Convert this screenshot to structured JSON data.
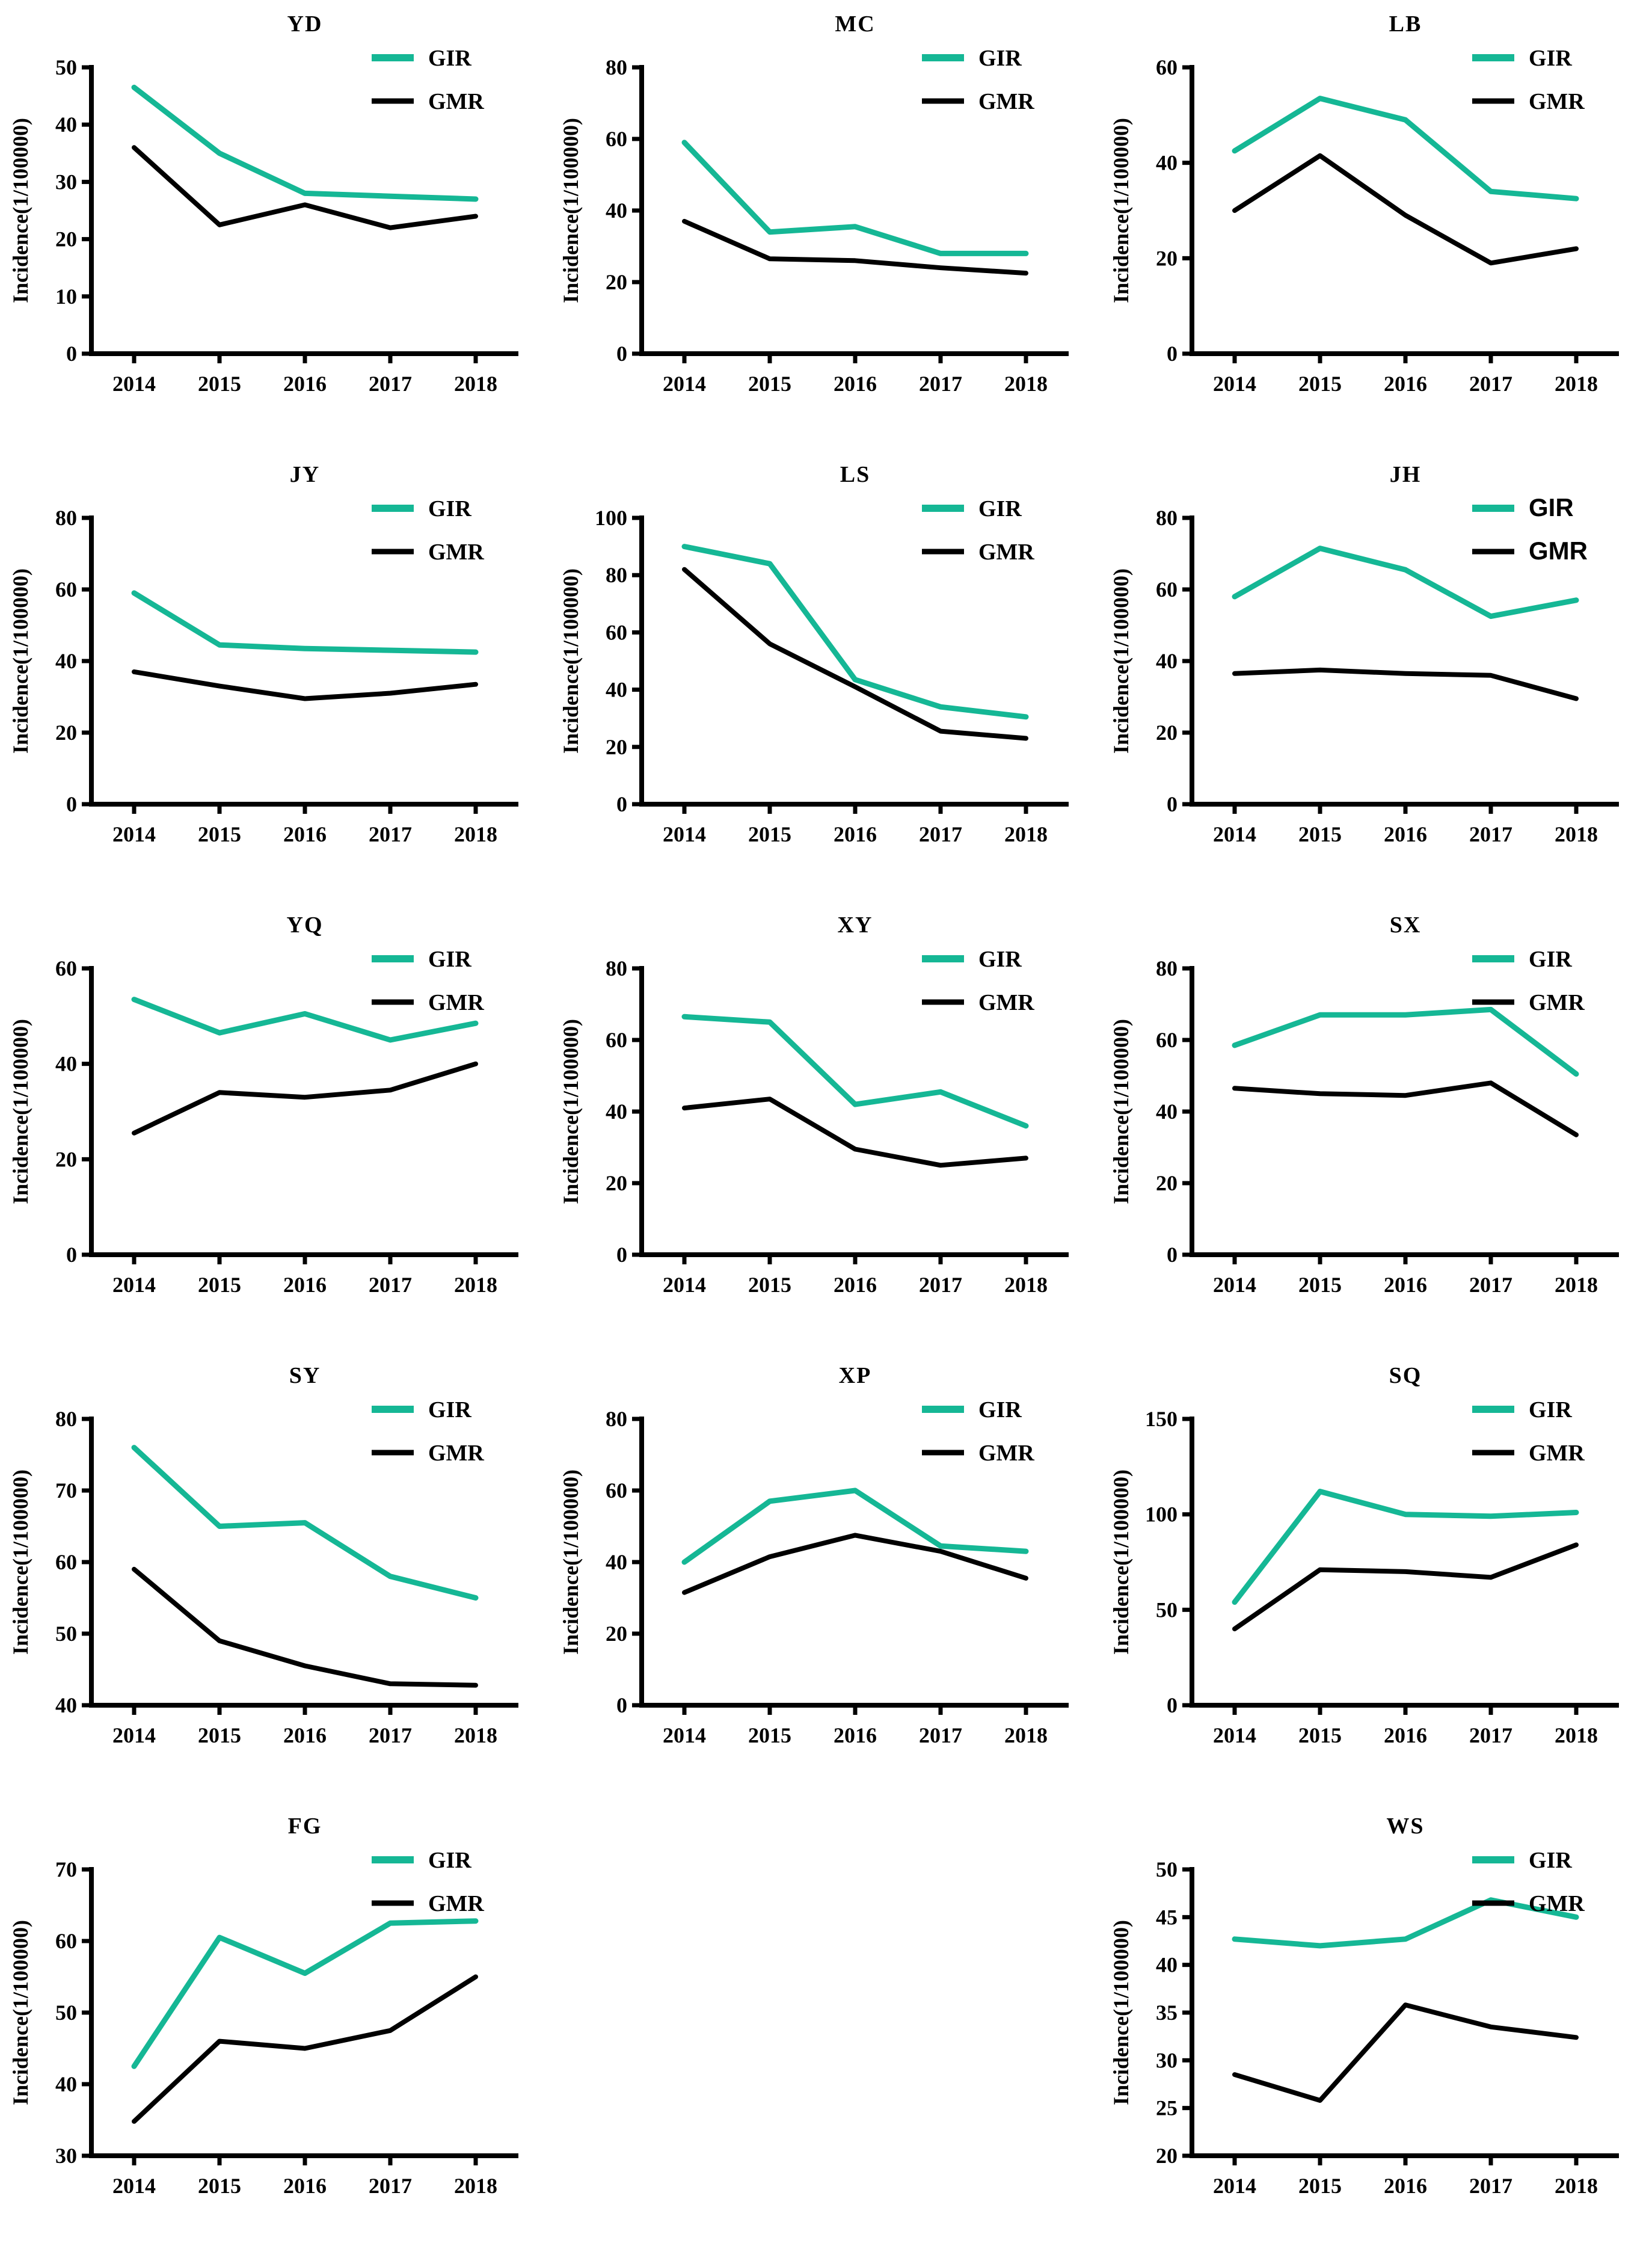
{
  "figure": {
    "ylabel": "Incidence(1/100000)",
    "years": [
      "2014",
      "2015",
      "2016",
      "2017",
      "2018"
    ],
    "legend": [
      {
        "name": "GIR",
        "color": "#15B795"
      },
      {
        "name": "GMR",
        "color": "#000000"
      }
    ],
    "grid_slots": [
      "YD",
      "MC",
      "LB",
      "JY",
      "LS",
      "JH",
      "YQ",
      "XY",
      "SX",
      "SY",
      "XP",
      "SQ",
      "FG",
      "",
      "WS"
    ]
  },
  "chart_data": [
    {
      "type": "line",
      "title": "YD",
      "xlabel": "",
      "ylabel": "Incidence(1/100000)",
      "x": [
        "2014",
        "2015",
        "2016",
        "2017",
        "2018"
      ],
      "ylim": [
        0,
        50
      ],
      "yticks": [
        0,
        10,
        20,
        30,
        40,
        50
      ],
      "legend_font": "serif",
      "series": [
        {
          "name": "GIR",
          "values": [
            46.5,
            35,
            28,
            27.5,
            27
          ]
        },
        {
          "name": "GMR",
          "values": [
            36,
            22.5,
            26,
            22,
            24
          ]
        }
      ]
    },
    {
      "type": "line",
      "title": "MC",
      "xlabel": "",
      "ylabel": "Incidence(1/100000)",
      "x": [
        "2014",
        "2015",
        "2016",
        "2017",
        "2018"
      ],
      "ylim": [
        0,
        80
      ],
      "yticks": [
        0,
        20,
        40,
        60,
        80
      ],
      "legend_font": "serif",
      "series": [
        {
          "name": "GIR",
          "values": [
            59,
            34,
            35.5,
            28,
            28
          ]
        },
        {
          "name": "GMR",
          "values": [
            37,
            26.5,
            26,
            24,
            22.5
          ]
        }
      ]
    },
    {
      "type": "line",
      "title": "LB",
      "xlabel": "",
      "ylabel": "Incidence(1/100000)",
      "x": [
        "2014",
        "2015",
        "2016",
        "2017",
        "2018"
      ],
      "ylim": [
        0,
        60
      ],
      "yticks": [
        0,
        20,
        40,
        60
      ],
      "legend_font": "serif",
      "series": [
        {
          "name": "GIR",
          "values": [
            42.5,
            53.5,
            49,
            34,
            32.5
          ]
        },
        {
          "name": "GMR",
          "values": [
            30,
            41.5,
            29,
            19,
            22
          ]
        }
      ]
    },
    {
      "type": "line",
      "title": "JY",
      "xlabel": "",
      "ylabel": "Incidence(1/100000)",
      "x": [
        "2014",
        "2015",
        "2016",
        "2017",
        "2018"
      ],
      "ylim": [
        0,
        80
      ],
      "yticks": [
        0,
        20,
        40,
        60,
        80
      ],
      "legend_font": "serif",
      "series": [
        {
          "name": "GIR",
          "values": [
            59,
            44.5,
            43.5,
            43,
            42.5
          ]
        },
        {
          "name": "GMR",
          "values": [
            37,
            33,
            29.5,
            31,
            33.5
          ]
        }
      ]
    },
    {
      "type": "line",
      "title": "LS",
      "xlabel": "",
      "ylabel": "Incidence(1/100000)",
      "x": [
        "2014",
        "2015",
        "2016",
        "2017",
        "2018"
      ],
      "ylim": [
        0,
        100
      ],
      "yticks": [
        0,
        20,
        40,
        60,
        80,
        100
      ],
      "legend_font": "serif",
      "series": [
        {
          "name": "GIR",
          "values": [
            90,
            84,
            43.5,
            34,
            30.5
          ]
        },
        {
          "name": "GMR",
          "values": [
            82,
            56,
            41,
            25.5,
            23
          ]
        }
      ]
    },
    {
      "type": "line",
      "title": "JH",
      "xlabel": "",
      "ylabel": "Incidence(1/100000)",
      "x": [
        "2014",
        "2015",
        "2016",
        "2017",
        "2018"
      ],
      "ylim": [
        0,
        80
      ],
      "yticks": [
        0,
        20,
        40,
        60,
        80
      ],
      "legend_font": "sans",
      "series": [
        {
          "name": "GIR",
          "values": [
            58,
            71.5,
            65.5,
            52.5,
            57
          ]
        },
        {
          "name": "GMR",
          "values": [
            36.5,
            37.5,
            36.5,
            36,
            29.5
          ]
        }
      ]
    },
    {
      "type": "line",
      "title": "YQ",
      "xlabel": "",
      "ylabel": "Incidence(1/100000)",
      "x": [
        "2014",
        "2015",
        "2016",
        "2017",
        "2018"
      ],
      "ylim": [
        0,
        60
      ],
      "yticks": [
        0,
        20,
        40,
        60
      ],
      "legend_font": "serif",
      "series": [
        {
          "name": "GIR",
          "values": [
            53.5,
            46.5,
            50.5,
            45,
            48.5
          ]
        },
        {
          "name": "GMR",
          "values": [
            25.5,
            34,
            33,
            34.5,
            40
          ]
        }
      ]
    },
    {
      "type": "line",
      "title": "XY",
      "xlabel": "",
      "ylabel": "Incidence(1/100000)",
      "x": [
        "2014",
        "2015",
        "2016",
        "2017",
        "2018"
      ],
      "ylim": [
        0,
        80
      ],
      "yticks": [
        0,
        20,
        40,
        60,
        80
      ],
      "legend_font": "serif",
      "series": [
        {
          "name": "GIR",
          "values": [
            66.5,
            65,
            42,
            45.5,
            36
          ]
        },
        {
          "name": "GMR",
          "values": [
            41,
            43.5,
            29.5,
            25,
            27
          ]
        }
      ]
    },
    {
      "type": "line",
      "title": "SX",
      "xlabel": "",
      "ylabel": "Incidence(1/100000)",
      "x": [
        "2014",
        "2015",
        "2016",
        "2017",
        "2018"
      ],
      "ylim": [
        0,
        80
      ],
      "yticks": [
        0,
        20,
        40,
        60,
        80
      ],
      "legend_font": "serif",
      "series": [
        {
          "name": "GIR",
          "values": [
            58.5,
            67,
            67,
            68.5,
            50.5
          ]
        },
        {
          "name": "GMR",
          "values": [
            46.5,
            45,
            44.5,
            48,
            33.5
          ]
        }
      ]
    },
    {
      "type": "line",
      "title": "SY",
      "xlabel": "",
      "ylabel": "Incidence(1/100000)",
      "x": [
        "2014",
        "2015",
        "2016",
        "2017",
        "2018"
      ],
      "ylim": [
        40,
        80
      ],
      "yticks": [
        40,
        50,
        60,
        70,
        80
      ],
      "legend_font": "serif",
      "series": [
        {
          "name": "GIR",
          "values": [
            76,
            65,
            65.5,
            58,
            55
          ]
        },
        {
          "name": "GMR",
          "values": [
            59,
            49,
            45.5,
            43,
            42.8
          ]
        }
      ]
    },
    {
      "type": "line",
      "title": "XP",
      "xlabel": "",
      "ylabel": "Incidence(1/100000)",
      "x": [
        "2014",
        "2015",
        "2016",
        "2017",
        "2018"
      ],
      "ylim": [
        0,
        80
      ],
      "yticks": [
        0,
        20,
        40,
        60,
        80
      ],
      "legend_font": "serif",
      "series": [
        {
          "name": "GIR",
          "values": [
            40,
            57,
            60,
            44.5,
            43
          ]
        },
        {
          "name": "GMR",
          "values": [
            31.5,
            41.5,
            47.5,
            43,
            35.5
          ]
        }
      ]
    },
    {
      "type": "line",
      "title": "SQ",
      "xlabel": "",
      "ylabel": "Incidence(1/100000)",
      "x": [
        "2014",
        "2015",
        "2016",
        "2017",
        "2018"
      ],
      "ylim": [
        0,
        150
      ],
      "yticks": [
        0,
        50,
        100,
        150
      ],
      "legend_font": "serif",
      "series": [
        {
          "name": "GIR",
          "values": [
            54,
            112,
            100,
            99,
            101
          ]
        },
        {
          "name": "GMR",
          "values": [
            40,
            71,
            70,
            67,
            84
          ]
        }
      ]
    },
    {
      "type": "line",
      "title": "FG",
      "xlabel": "",
      "ylabel": "Incidence(1/100000)",
      "x": [
        "2014",
        "2015",
        "2016",
        "2017",
        "2018"
      ],
      "ylim": [
        30,
        70
      ],
      "yticks": [
        30,
        40,
        50,
        60,
        70
      ],
      "legend_font": "serif",
      "series": [
        {
          "name": "GIR",
          "values": [
            42.5,
            60.5,
            55.5,
            62.5,
            62.8
          ]
        },
        {
          "name": "GMR",
          "values": [
            34.8,
            46,
            45,
            47.5,
            55
          ]
        }
      ]
    },
    {
      "type": "line",
      "title": "WS",
      "xlabel": "",
      "ylabel": "Incidence(1/100000)",
      "x": [
        "2014",
        "2015",
        "2016",
        "2017",
        "2018"
      ],
      "ylim": [
        20,
        50
      ],
      "yticks": [
        20,
        25,
        30,
        35,
        40,
        45,
        50
      ],
      "legend_font": "serif",
      "series": [
        {
          "name": "GIR",
          "values": [
            42.7,
            42,
            42.7,
            46.8,
            45
          ]
        },
        {
          "name": "GMR",
          "values": [
            28.5,
            25.8,
            35.8,
            33.5,
            32.4
          ]
        }
      ]
    }
  ]
}
